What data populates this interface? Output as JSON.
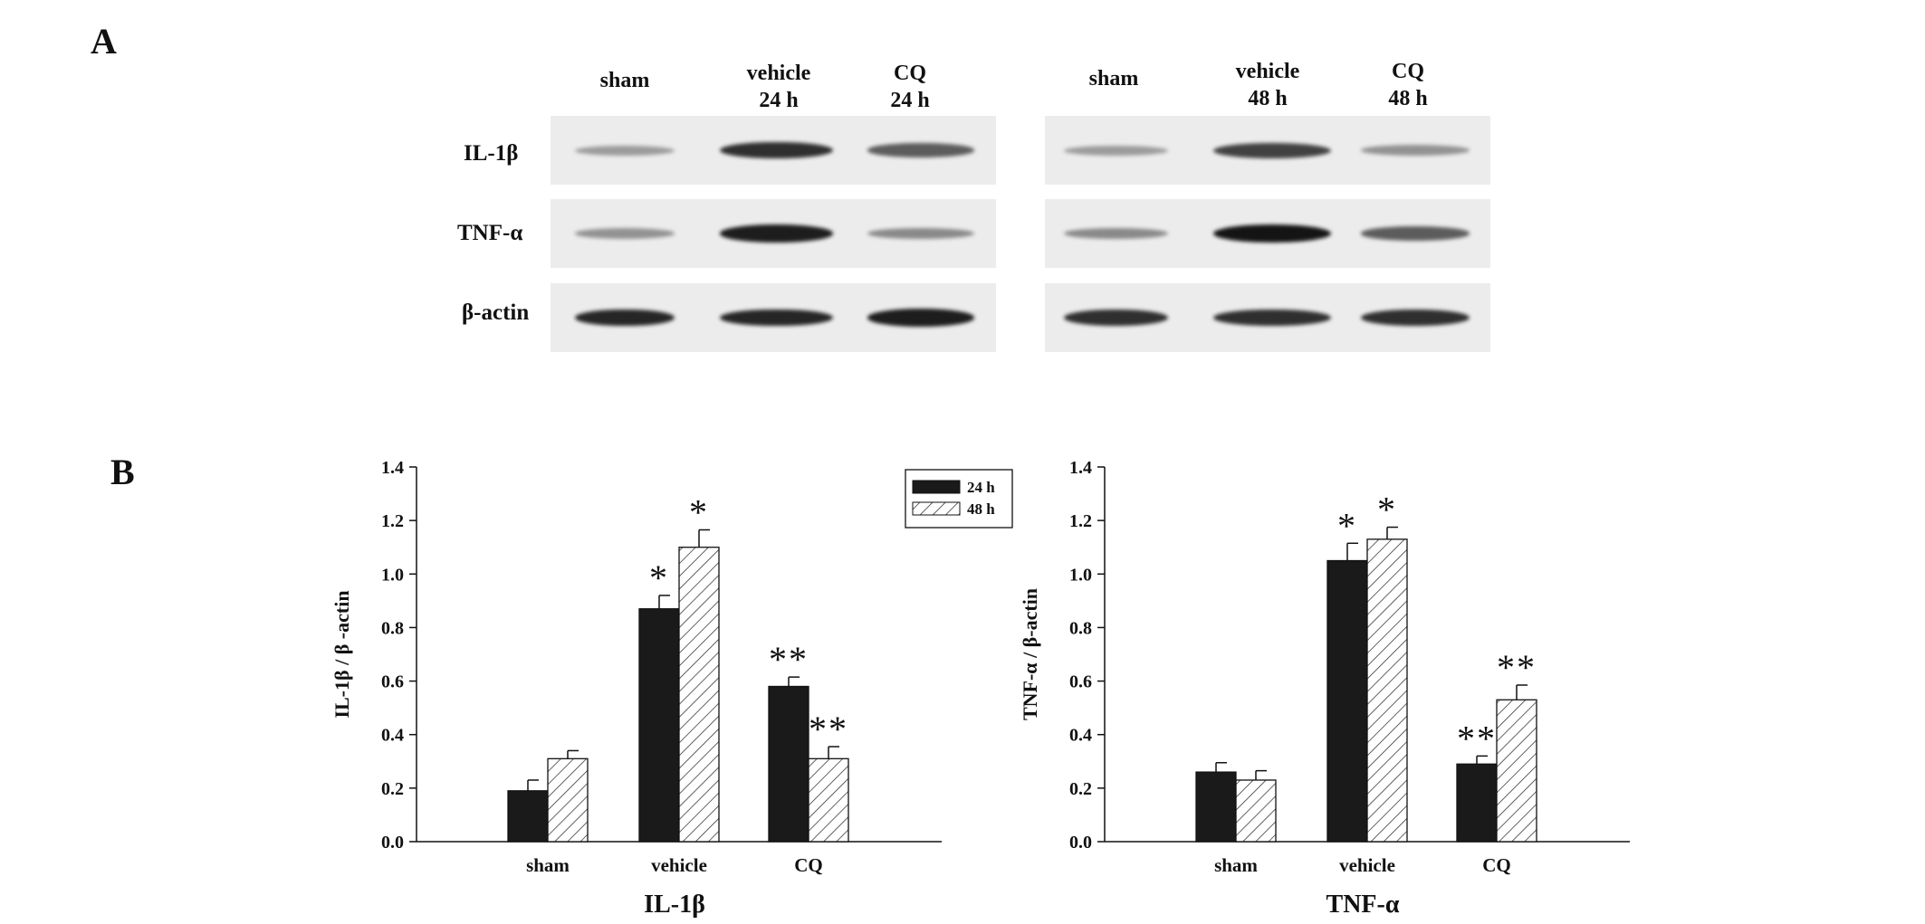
{
  "panel_a": {
    "label": "A",
    "blot_left": {
      "lanes": [
        {
          "line1": "sham",
          "line2": ""
        },
        {
          "line1": "vehicle",
          "line2": "24 h"
        },
        {
          "line1": "CQ",
          "line2": "24 h"
        }
      ]
    },
    "blot_right": {
      "lanes": [
        {
          "line1": "sham",
          "line2": ""
        },
        {
          "line1": "vehicle",
          "line2": "48 h"
        },
        {
          "line1": "CQ",
          "line2": "48 h"
        }
      ]
    },
    "rows": [
      "IL-1β",
      "TNF-α",
      "β-actin"
    ],
    "band_intensity": {
      "left": [
        [
          0.25,
          0.85,
          0.6
        ],
        [
          0.3,
          0.95,
          0.35
        ],
        [
          0.9,
          0.9,
          0.95
        ]
      ],
      "right": [
        [
          0.25,
          0.75,
          0.3
        ],
        [
          0.35,
          1.0,
          0.6
        ],
        [
          0.85,
          0.85,
          0.85
        ]
      ]
    }
  },
  "panel_b": {
    "label": "B"
  },
  "chart_data": [
    {
      "type": "bar",
      "title": "IL-1β",
      "ylabel": "IL-1β / β -actin",
      "xlabel": "",
      "categories": [
        "sham",
        "vehicle",
        "CQ"
      ],
      "ylim": [
        0,
        1.4
      ],
      "yticks": [
        "0.0",
        "0.2",
        "0.4",
        "0.6",
        "0.8",
        "1.0",
        "1.2",
        "1.4"
      ],
      "series": [
        {
          "name": "24 h",
          "values": [
            0.19,
            0.87,
            0.58
          ],
          "errors": [
            0.04,
            0.05,
            0.035
          ],
          "fill": "#1a1a1a"
        },
        {
          "name": "48 h",
          "values": [
            0.31,
            1.1,
            0.31
          ],
          "errors": [
            0.03,
            0.065,
            0.045
          ],
          "fill": "hatch"
        }
      ],
      "annotations": [
        [
          "",
          "*",
          "**"
        ],
        [
          "",
          "*",
          "**"
        ]
      ],
      "legend": {
        "position": "top-right",
        "entries": [
          "24 h",
          "48 h"
        ]
      }
    },
    {
      "type": "bar",
      "title": "TNF-α",
      "ylabel": "TNF-α / β-actin",
      "xlabel": "",
      "categories": [
        "sham",
        "vehicle",
        "CQ"
      ],
      "ylim": [
        0,
        1.4
      ],
      "yticks": [
        "0.0",
        "0.2",
        "0.4",
        "0.6",
        "0.8",
        "1.0",
        "1.2",
        "1.4"
      ],
      "series": [
        {
          "name": "24 h",
          "values": [
            0.26,
            1.05,
            0.29
          ],
          "errors": [
            0.035,
            0.065,
            0.03
          ],
          "fill": "#1a1a1a"
        },
        {
          "name": "48 h",
          "values": [
            0.23,
            1.13,
            0.53
          ],
          "errors": [
            0.035,
            0.045,
            0.055
          ],
          "fill": "hatch"
        }
      ],
      "annotations": [
        [
          "",
          "*",
          "**"
        ],
        [
          "",
          "*",
          "**"
        ]
      ]
    }
  ]
}
